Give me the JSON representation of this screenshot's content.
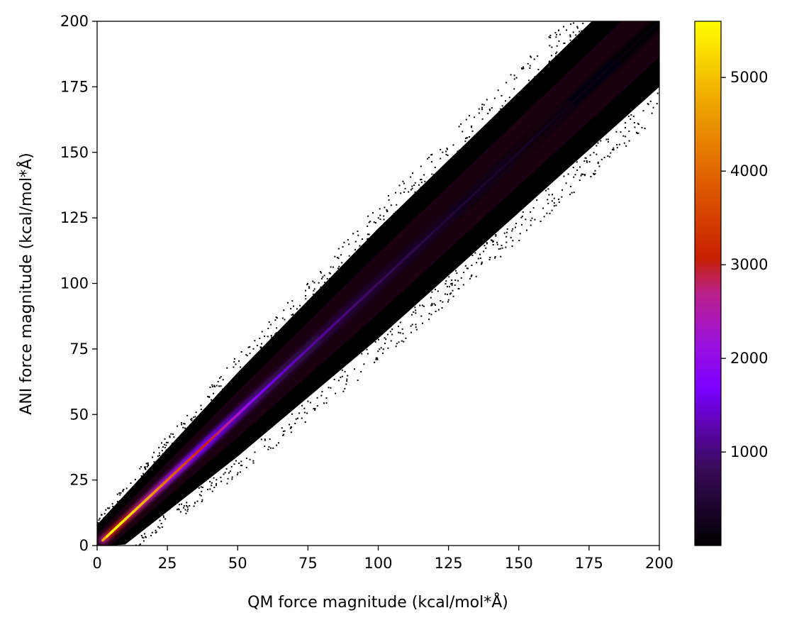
{
  "chart_data": {
    "type": "heatmap",
    "subtype": "2d-histogram",
    "title": "",
    "xlabel": "QM force magnitude (kcal/mol*Å)",
    "ylabel": "ANI force magnitude (kcal/mol*Å)",
    "xlim": [
      0,
      200
    ],
    "ylim": [
      0,
      200
    ],
    "x_ticks": [
      "0",
      "25",
      "50",
      "75",
      "100",
      "125",
      "150",
      "175",
      "200"
    ],
    "y_ticks": [
      "0",
      "25",
      "50",
      "75",
      "100",
      "125",
      "150",
      "175",
      "200"
    ],
    "grid": false,
    "colormap": "gnuplot",
    "colorbar": {
      "range": [
        1,
        5600
      ],
      "ticks": [
        "1000",
        "2000",
        "3000",
        "4000",
        "5000"
      ],
      "tick_values": [
        1000,
        2000,
        3000,
        4000,
        5000
      ]
    },
    "density_profile": [
      {
        "x": 2,
        "y": 2,
        "count": 4500
      },
      {
        "x": 5,
        "y": 5,
        "count": 5600
      },
      {
        "x": 10,
        "y": 10,
        "count": 5400
      },
      {
        "x": 15,
        "y": 15,
        "count": 5000
      },
      {
        "x": 20,
        "y": 20,
        "count": 4600
      },
      {
        "x": 25,
        "y": 25,
        "count": 4100
      },
      {
        "x": 30,
        "y": 30,
        "count": 3700
      },
      {
        "x": 35,
        "y": 35,
        "count": 3300
      },
      {
        "x": 40,
        "y": 40,
        "count": 3000
      },
      {
        "x": 45,
        "y": 45,
        "count": 2700
      },
      {
        "x": 50,
        "y": 50,
        "count": 2300
      },
      {
        "x": 60,
        "y": 60,
        "count": 1600
      },
      {
        "x": 75,
        "y": 75,
        "count": 1200
      },
      {
        "x": 100,
        "y": 100,
        "count": 800
      },
      {
        "x": 125,
        "y": 125,
        "count": 500
      },
      {
        "x": 150,
        "y": 150,
        "count": 300
      },
      {
        "x": 175,
        "y": 175,
        "count": 150
      },
      {
        "x": 200,
        "y": 200,
        "count": 80
      }
    ],
    "band_half_width": [
      {
        "x": 0,
        "y_spread": 8
      },
      {
        "x": 50,
        "y_spread": 16
      },
      {
        "x": 100,
        "y_spread": 21
      },
      {
        "x": 150,
        "y_spread": 23
      },
      {
        "x": 200,
        "y_spread": 25
      }
    ]
  }
}
